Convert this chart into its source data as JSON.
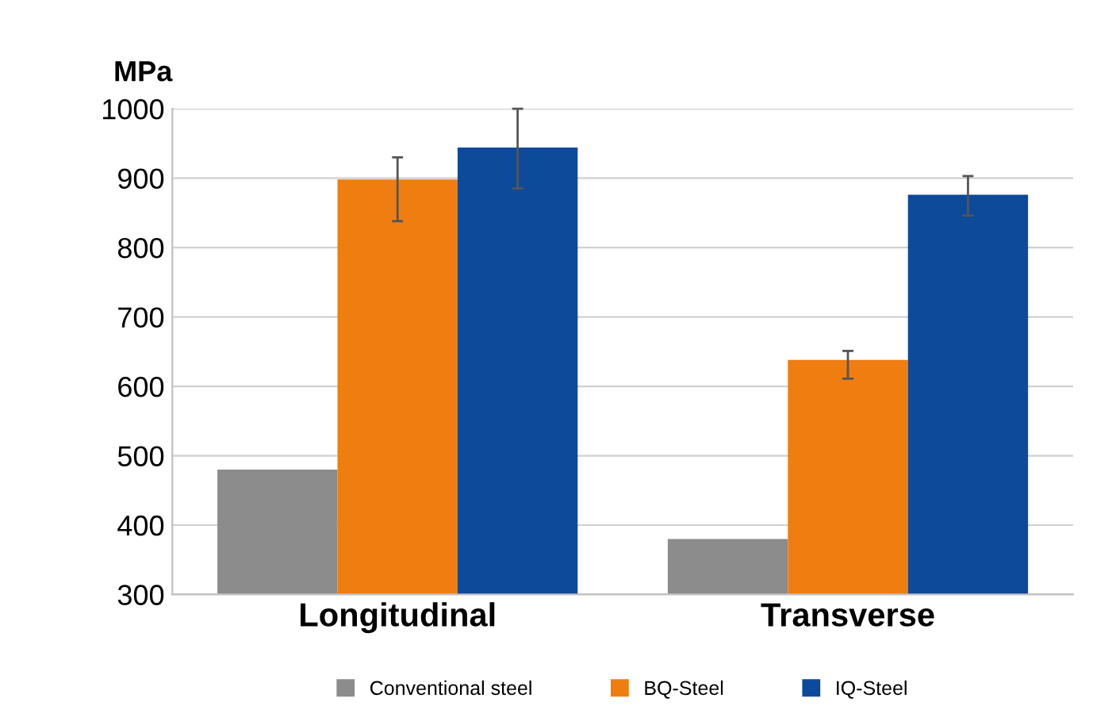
{
  "chart_data": {
    "type": "bar",
    "ylabel": "MPa",
    "categories": [
      "Longitudinal",
      "Transverse"
    ],
    "series": [
      {
        "name": "Conventional steel",
        "color": "#8c8c8c",
        "values": [
          480,
          380
        ],
        "errors": [
          null,
          null
        ]
      },
      {
        "name": "BQ-Steel",
        "color": "#f07d10",
        "values": [
          898,
          638
        ],
        "errors": [
          [
            838,
            930
          ],
          [
            611,
            651
          ]
        ]
      },
      {
        "name": "IQ-Steel",
        "color": "#0d4a9a",
        "values": [
          944,
          876
        ],
        "errors": [
          [
            885,
            1000
          ],
          [
            846,
            903
          ]
        ]
      }
    ],
    "ylim": [
      300,
      1000
    ],
    "yticks": [
      300,
      400,
      500,
      600,
      700,
      800,
      900,
      1000
    ],
    "grid": "y",
    "legend": "bottom"
  }
}
